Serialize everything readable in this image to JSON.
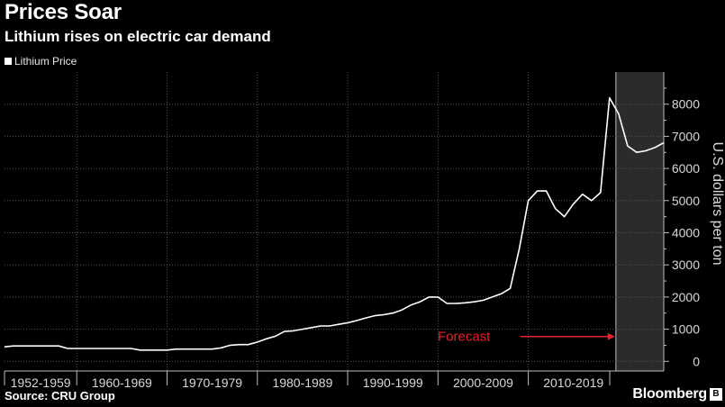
{
  "header": {
    "title": "Prices Soar",
    "subtitle": "Lithium rises on electric car demand"
  },
  "footer": {
    "source": "Source: CRU Group",
    "brand": "Bloomberg",
    "brand_mark": "B"
  },
  "colors": {
    "background": "#000000",
    "line": "#ffffff",
    "forecast_shade": "#2b2b2b",
    "annotation": "#e8202a"
  },
  "chart_data": {
    "type": "line",
    "title": "Prices Soar",
    "subtitle": "Lithium rises on electric car demand",
    "xlabel": "",
    "ylabel": "U.S. dollars per ton",
    "ylim": [
      -300,
      9000
    ],
    "yticks": [
      0,
      1000,
      2000,
      3000,
      4000,
      5000,
      6000,
      7000,
      8000
    ],
    "ytick_labels": [
      "0",
      "1000",
      "2000",
      "3000",
      "4000",
      "5000",
      "6000",
      "7000",
      "8000"
    ],
    "xlim": [
      1952,
      2025
    ],
    "grid": true,
    "legend": "top-left",
    "x_categories": [
      {
        "label": "1952-1959",
        "start": 1952,
        "end": 1960
      },
      {
        "label": "1960-1969",
        "start": 1960,
        "end": 1970
      },
      {
        "label": "1970-1979",
        "start": 1970,
        "end": 1980
      },
      {
        "label": "1980-1989",
        "start": 1980,
        "end": 1990
      },
      {
        "label": "1990-1999",
        "start": 1990,
        "end": 2000
      },
      {
        "label": "2000-2009",
        "start": 2000,
        "end": 2010
      },
      {
        "label": "2010-2019",
        "start": 2010,
        "end": 2020
      }
    ],
    "forecast_start": 2019.7,
    "annotation": {
      "text": "Forecast",
      "arrow_to_year": 2019.6,
      "y": 800
    },
    "series": [
      {
        "name": "Lithium Price",
        "x": [
          1952,
          1953,
          1954,
          1955,
          1956,
          1957,
          1958,
          1959,
          1960,
          1961,
          1962,
          1963,
          1964,
          1965,
          1966,
          1967,
          1968,
          1969,
          1970,
          1971,
          1972,
          1973,
          1974,
          1975,
          1976,
          1977,
          1978,
          1979,
          1980,
          1981,
          1982,
          1983,
          1984,
          1985,
          1986,
          1987,
          1988,
          1989,
          1990,
          1991,
          1992,
          1993,
          1994,
          1995,
          1996,
          1997,
          1998,
          1999,
          2000,
          2001,
          2002,
          2003,
          2004,
          2005,
          2006,
          2007,
          2008,
          2009,
          2010,
          2011,
          2012,
          2013,
          2014,
          2015,
          2016,
          2017,
          2018,
          2019,
          2020,
          2021,
          2022,
          2023,
          2024,
          2025
        ],
        "values": [
          450,
          480,
          480,
          480,
          480,
          480,
          480,
          400,
          400,
          400,
          400,
          400,
          400,
          400,
          400,
          350,
          350,
          350,
          350,
          380,
          380,
          380,
          380,
          380,
          420,
          500,
          520,
          520,
          600,
          700,
          780,
          930,
          950,
          1000,
          1050,
          1100,
          1100,
          1150,
          1200,
          1270,
          1350,
          1420,
          1450,
          1500,
          1600,
          1750,
          1850,
          2000,
          2000,
          1800,
          1800,
          1820,
          1850,
          1900,
          2000,
          2100,
          2270,
          3500,
          5000,
          5300,
          5300,
          4750,
          4500,
          4900,
          5200,
          5000,
          5250,
          8200,
          7700,
          6700,
          6500,
          6550,
          6650,
          6800
        ]
      }
    ]
  }
}
